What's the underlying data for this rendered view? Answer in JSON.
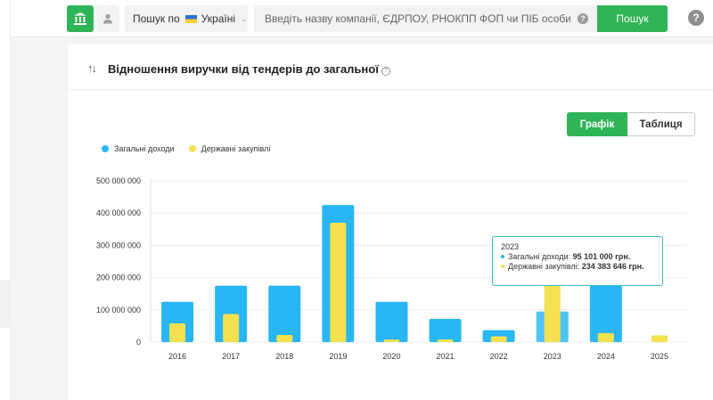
{
  "header": {
    "search_by_label": "Пошук по",
    "country": "Україні",
    "search_placeholder": "Введіть назву компанії, ЄДРПОУ, РНОКПП ФОП чи ПІБ особи",
    "search_button": "Пошук",
    "help": "?"
  },
  "card": {
    "title": "Відношення виручки від тендерів до загальної",
    "view_toggle": {
      "graph": "Графік",
      "table": "Таблиця",
      "active": "graph"
    }
  },
  "chart_data": {
    "type": "bar",
    "categories": [
      "2016",
      "2017",
      "2018",
      "2019",
      "2020",
      "2021",
      "2022",
      "2023",
      "2024",
      "2025"
    ],
    "series": [
      {
        "name": "Загальні доходи",
        "color": "#29b6f6",
        "values": [
          125000000,
          175000000,
          175000000,
          425000000,
          125000000,
          72000000,
          37000000,
          95101000,
          187000000,
          0
        ]
      },
      {
        "name": "Державні закупівлі",
        "color": "#f5e050",
        "values": [
          58000000,
          87000000,
          22000000,
          370000000,
          8000000,
          8000000,
          18000000,
          234383646,
          28000000,
          21000000
        ]
      }
    ],
    "ylim": [
      0,
      500000000
    ],
    "yticks": [
      "0",
      "100 000 000",
      "200 000 000",
      "300 000 000",
      "400 000 000",
      "500 000 000"
    ],
    "grid": true,
    "legend_position": "top-left"
  },
  "tooltip": {
    "year": "2023",
    "line1_label": "Загальні доходи:",
    "line1_value": "95 101 000 грн.",
    "line2_label": "Державні закупівлі:",
    "line2_value": "234 383 646 грн."
  }
}
